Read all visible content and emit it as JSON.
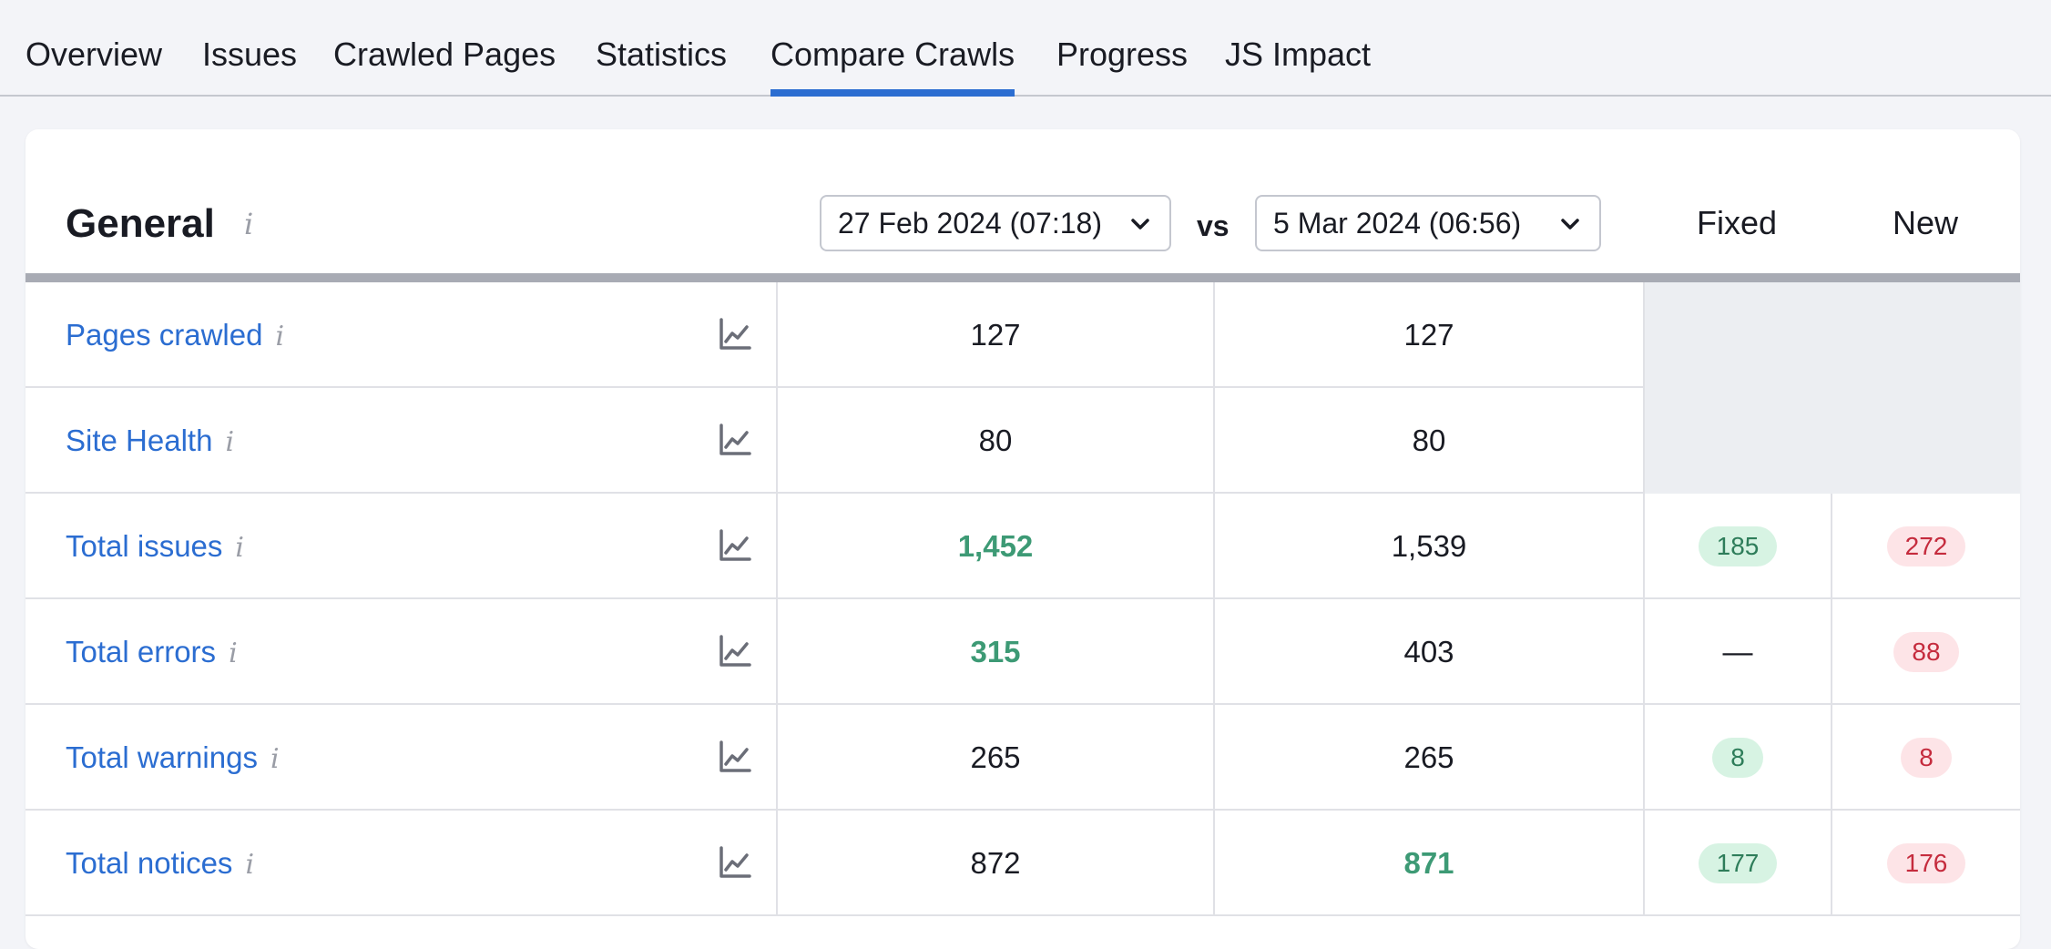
{
  "tabs": [
    {
      "label": "Overview"
    },
    {
      "label": "Issues"
    },
    {
      "label": "Crawled Pages"
    },
    {
      "label": "Statistics"
    },
    {
      "label": "Compare Crawls",
      "active": true
    },
    {
      "label": "Progress"
    },
    {
      "label": "JS Impact"
    }
  ],
  "general": {
    "title": "General",
    "info_glyph": "i",
    "crawl_a": "27 Feb 2024 (07:18)",
    "vs": "vs",
    "crawl_b": "5 Mar 2024 (06:56)",
    "col_fixed": "Fixed",
    "col_new": "New"
  },
  "rows": [
    {
      "metric": "Pages crawled",
      "a": "127",
      "b": "127",
      "a_better": false,
      "b_better": false,
      "fixed": "",
      "new": "",
      "grey": true
    },
    {
      "metric": "Site Health",
      "a": "80",
      "b": "80",
      "a_better": false,
      "b_better": false,
      "fixed": "",
      "new": "",
      "grey": true
    },
    {
      "metric": "Total issues",
      "a": "1,452",
      "b": "1,539",
      "a_better": true,
      "b_better": false,
      "fixed": "185",
      "new": "272",
      "grey": false
    },
    {
      "metric": "Total errors",
      "a": "315",
      "b": "403",
      "a_better": true,
      "b_better": false,
      "fixed": "—",
      "new": "88",
      "grey": false
    },
    {
      "metric": "Total warnings",
      "a": "265",
      "b": "265",
      "a_better": false,
      "b_better": false,
      "fixed": "8",
      "new": "8",
      "grey": false
    },
    {
      "metric": "Total notices",
      "a": "872",
      "b": "871",
      "a_better": false,
      "b_better": true,
      "fixed": "177",
      "new": "176",
      "grey": false
    }
  ],
  "colors": {
    "accent": "#2b6dd1",
    "better": "#3d9a75",
    "fixed_badge_bg": "#d7f3e3",
    "new_badge_bg": "#fde4e7"
  },
  "icons": {
    "chart": "chart-line-icon",
    "info": "info-icon",
    "dropdown": "chevron-down-icon"
  }
}
